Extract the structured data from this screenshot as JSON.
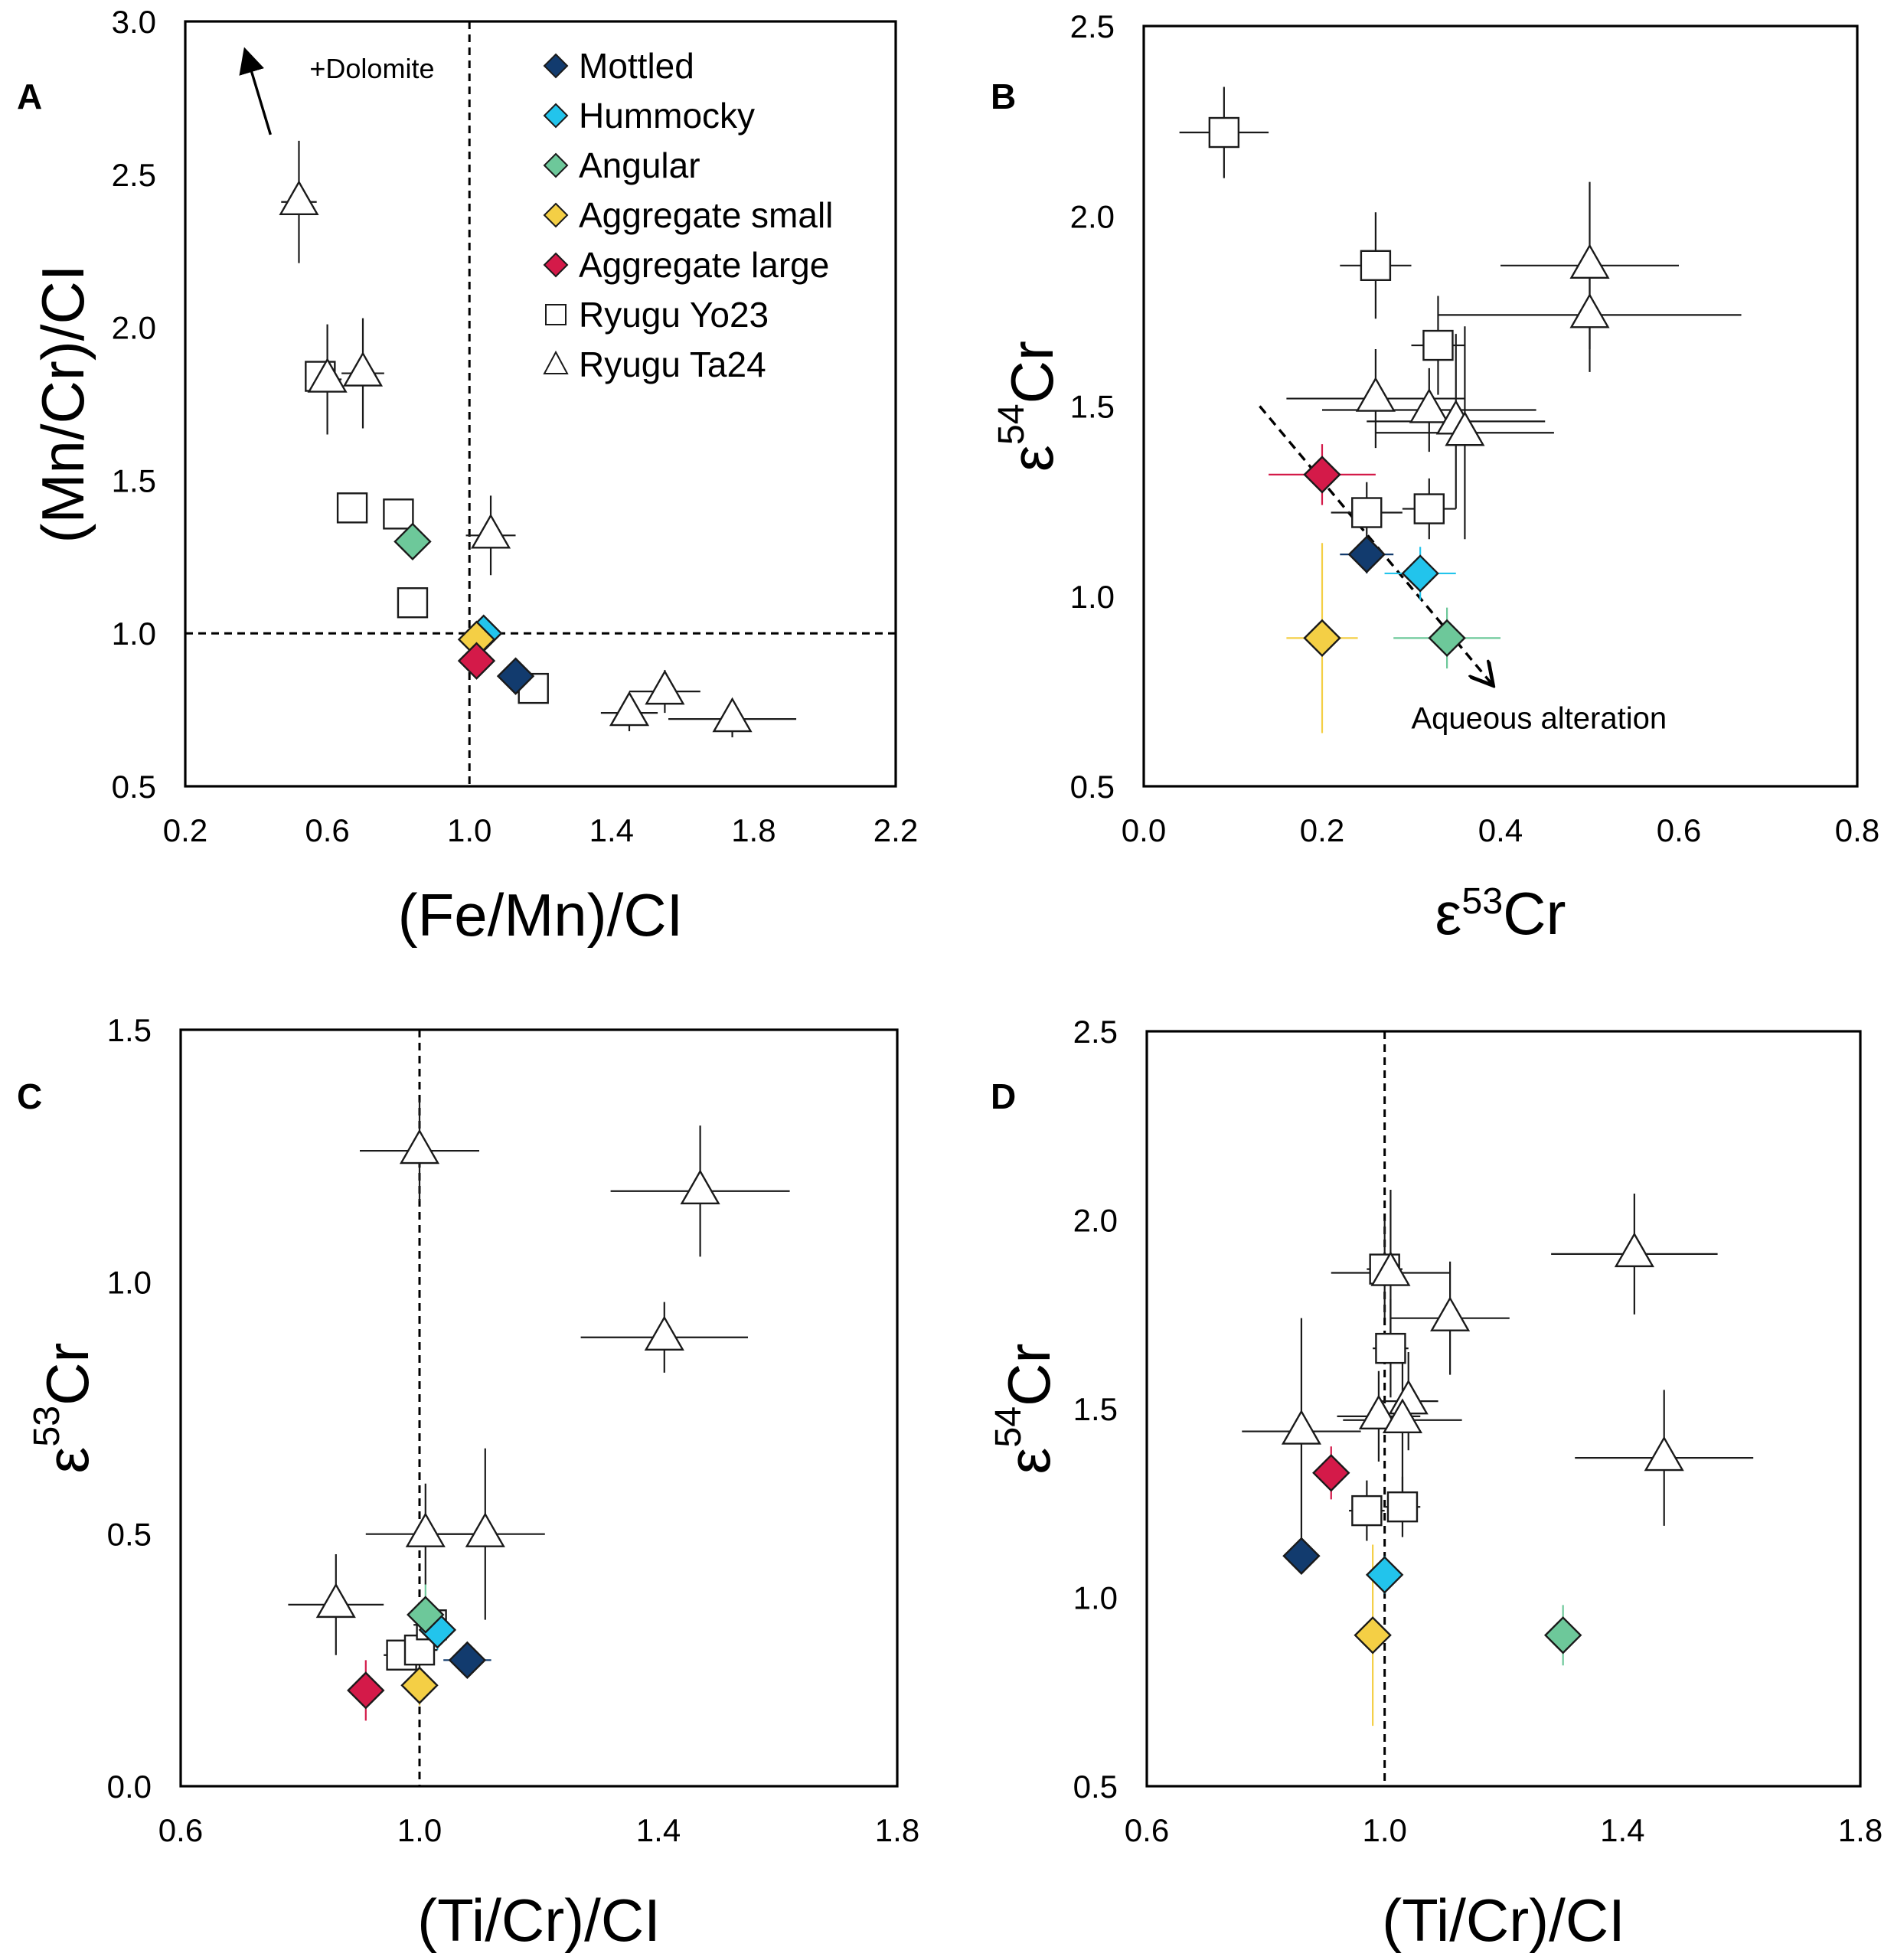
{
  "chart_data": [
    {
      "panel": "A",
      "type": "scatter",
      "xlabel": "(Fe/Mn)/CI",
      "ylabel": "(Mn/Cr)/CI",
      "xlim": [
        0.2,
        2.2
      ],
      "ylim": [
        0.5,
        3.0
      ],
      "xticks": [
        0.2,
        0.6,
        1.0,
        1.4,
        1.8,
        2.2
      ],
      "yticks": [
        0.5,
        1.0,
        1.5,
        2.0,
        2.5,
        3.0
      ],
      "grid": false,
      "reference_lines": [
        {
          "axis": "x",
          "value": 1.0
        },
        {
          "axis": "y",
          "value": 1.0
        }
      ],
      "annotations": [
        {
          "text": "+Dolomite",
          "x": 0.55,
          "y": 2.85,
          "arrow_from": [
            0.44,
            2.63
          ],
          "arrow_to": [
            0.37,
            2.9
          ]
        }
      ],
      "legend": {
        "placement": "top-right",
        "entries": [
          {
            "label": "Mottled",
            "marker": "diamond",
            "color": "#123b6e"
          },
          {
            "label": "Hummocky",
            "marker": "diamond",
            "color": "#22c4ec"
          },
          {
            "label": "Angular",
            "marker": "diamond",
            "color": "#6dc89a"
          },
          {
            "label": "Aggregate small",
            "marker": "diamond",
            "color": "#f4cf45"
          },
          {
            "label": "Aggregate large",
            "marker": "diamond",
            "color": "#d41a49"
          },
          {
            "label": "Ryugu Yo23",
            "marker": "square",
            "color": "#ffffff"
          },
          {
            "label": "Ryugu Ta24",
            "marker": "triangle",
            "color": "#ffffff"
          }
        ]
      },
      "series": [
        {
          "name": "Mottled",
          "marker": "diamond",
          "color": "#123b6e",
          "points": [
            {
              "x": 1.13,
              "y": 0.86
            }
          ]
        },
        {
          "name": "Hummocky",
          "marker": "diamond",
          "color": "#22c4ec",
          "points": [
            {
              "x": 1.04,
              "y": 1.0
            }
          ]
        },
        {
          "name": "Angular",
          "marker": "diamond",
          "color": "#6dc89a",
          "points": [
            {
              "x": 0.84,
              "y": 1.3
            }
          ]
        },
        {
          "name": "Aggregate small",
          "marker": "diamond",
          "color": "#f4cf45",
          "points": [
            {
              "x": 1.02,
              "y": 0.98
            }
          ]
        },
        {
          "name": "Aggregate large",
          "marker": "diamond",
          "color": "#d41a49",
          "points": [
            {
              "x": 1.02,
              "y": 0.91
            }
          ]
        },
        {
          "name": "Ryugu Yo23",
          "marker": "square",
          "color": "#ffffff",
          "points": [
            {
              "x": 0.58,
              "y": 1.84
            },
            {
              "x": 0.67,
              "y": 1.41
            },
            {
              "x": 0.8,
              "y": 1.39
            },
            {
              "x": 0.84,
              "y": 1.1
            },
            {
              "x": 1.18,
              "y": 0.82
            }
          ]
        },
        {
          "name": "Ryugu Ta24",
          "marker": "triangle",
          "color": "#ffffff",
          "points": [
            {
              "x": 0.52,
              "y": 2.41,
              "xerr": 0.05,
              "yerr": 0.2
            },
            {
              "x": 0.6,
              "y": 1.83,
              "xerr": 0.04,
              "yerr": 0.18
            },
            {
              "x": 0.7,
              "y": 1.85,
              "xerr": 0.06,
              "yerr": 0.18
            },
            {
              "x": 1.06,
              "y": 1.32,
              "xerr": 0.07,
              "yerr": 0.13
            },
            {
              "x": 1.45,
              "y": 0.74,
              "xerr": 0.08,
              "yerr": 0.06
            },
            {
              "x": 1.55,
              "y": 0.81,
              "xerr": 0.1,
              "yerr": 0.07
            },
            {
              "x": 1.74,
              "y": 0.72,
              "xerr": 0.18,
              "yerr": 0.06
            }
          ]
        }
      ]
    },
    {
      "panel": "B",
      "type": "scatter",
      "xlabel": "ε53Cr",
      "ylabel": "ε54Cr",
      "xlim": [
        0.0,
        0.8
      ],
      "ylim": [
        0.5,
        2.5
      ],
      "xticks": [
        0.0,
        0.2,
        0.4,
        0.6,
        0.8
      ],
      "yticks": [
        0.5,
        1.0,
        1.5,
        2.0,
        2.5
      ],
      "grid": false,
      "annotations": [
        {
          "text": "Aqueous alteration",
          "x": 0.3,
          "y": 0.68,
          "arrow_from": [
            0.13,
            1.5
          ],
          "arrow_to": [
            0.39,
            0.77
          ]
        }
      ],
      "series": [
        {
          "name": "Mottled",
          "marker": "diamond",
          "color": "#123b6e",
          "points": [
            {
              "x": 0.25,
              "y": 1.11,
              "xerr": 0.03,
              "yerr": 0.05
            }
          ]
        },
        {
          "name": "Hummocky",
          "marker": "diamond",
          "color": "#22c4ec",
          "points": [
            {
              "x": 0.31,
              "y": 1.06,
              "xerr": 0.04,
              "yerr": 0.07
            }
          ]
        },
        {
          "name": "Angular",
          "marker": "diamond",
          "color": "#6dc89a",
          "points": [
            {
              "x": 0.34,
              "y": 0.89,
              "xerr": 0.06,
              "yerr": 0.08
            }
          ]
        },
        {
          "name": "Aggregate small",
          "marker": "diamond",
          "color": "#f4cf45",
          "points": [
            {
              "x": 0.2,
              "y": 0.89,
              "xerr": 0.04,
              "yerr": 0.25
            }
          ]
        },
        {
          "name": "Aggregate large",
          "marker": "diamond",
          "color": "#d41a49",
          "points": [
            {
              "x": 0.2,
              "y": 1.32,
              "xerr": 0.06,
              "yerr": 0.08
            }
          ]
        },
        {
          "name": "Ryugu Yo23",
          "marker": "square",
          "color": "#ffffff",
          "points": [
            {
              "x": 0.09,
              "y": 2.22,
              "xerr": 0.05,
              "yerr": 0.12
            },
            {
              "x": 0.26,
              "y": 1.87,
              "xerr": 0.04,
              "yerr": 0.14
            },
            {
              "x": 0.33,
              "y": 1.66,
              "xerr": 0.03,
              "yerr": 0.13
            },
            {
              "x": 0.25,
              "y": 1.22,
              "xerr": 0.04,
              "yerr": 0.08
            },
            {
              "x": 0.32,
              "y": 1.23,
              "xerr": 0.03,
              "yerr": 0.08
            }
          ]
        },
        {
          "name": "Ryugu Ta24",
          "marker": "triangle",
          "color": "#ffffff",
          "points": [
            {
              "x": 0.5,
              "y": 1.87,
              "xerr": 0.1,
              "yerr": 0.22
            },
            {
              "x": 0.5,
              "y": 1.74,
              "xerr": 0.17,
              "yerr": 0.15
            },
            {
              "x": 0.26,
              "y": 1.52,
              "xerr": 0.1,
              "yerr": 0.13
            },
            {
              "x": 0.32,
              "y": 1.49,
              "xerr": 0.12,
              "yerr": 0.11
            },
            {
              "x": 0.35,
              "y": 1.46,
              "xerr": 0.1,
              "yerr": 0.23
            },
            {
              "x": 0.36,
              "y": 1.43,
              "xerr": 0.1,
              "yerr": 0.28
            }
          ]
        }
      ]
    },
    {
      "panel": "C",
      "type": "scatter",
      "xlabel": "(Ti/Cr)/CI",
      "ylabel": "ε53Cr",
      "xlim": [
        0.6,
        1.8
      ],
      "ylim": [
        0.0,
        1.5
      ],
      "xticks": [
        0.6,
        1.0,
        1.4,
        1.8
      ],
      "yticks": [
        0.0,
        0.5,
        1.0,
        1.5
      ],
      "grid": false,
      "reference_lines": [
        {
          "axis": "x",
          "value": 1.0
        }
      ],
      "series": [
        {
          "name": "Mottled",
          "marker": "diamond",
          "color": "#123b6e",
          "points": [
            {
              "x": 1.08,
              "y": 0.25,
              "xerr": 0.04,
              "yerr": 0.02
            }
          ]
        },
        {
          "name": "Hummocky",
          "marker": "diamond",
          "color": "#22c4ec",
          "points": [
            {
              "x": 1.03,
              "y": 0.31,
              "xerr": 0.03,
              "yerr": 0.04
            }
          ]
        },
        {
          "name": "Angular",
          "marker": "diamond",
          "color": "#6dc89a",
          "points": [
            {
              "x": 1.01,
              "y": 0.34,
              "xerr": 0.03,
              "yerr": 0.06
            }
          ]
        },
        {
          "name": "Aggregate small",
          "marker": "diamond",
          "color": "#f4cf45",
          "points": [
            {
              "x": 1.0,
              "y": 0.2,
              "xerr": 0.03,
              "yerr": 0.04
            }
          ]
        },
        {
          "name": "Aggregate large",
          "marker": "diamond",
          "color": "#d41a49",
          "points": [
            {
              "x": 0.91,
              "y": 0.19,
              "xerr": 0.02,
              "yerr": 0.06
            }
          ]
        },
        {
          "name": "Ryugu Yo23",
          "marker": "square",
          "color": "#ffffff",
          "points": [
            {
              "x": 0.97,
              "y": 0.26,
              "xerr": 0.03,
              "yerr": 0.02
            },
            {
              "x": 1.0,
              "y": 0.27,
              "xerr": 0.03,
              "yerr": 0.04
            },
            {
              "x": 1.02,
              "y": 0.32,
              "xerr": 0.03,
              "yerr": 0.03
            }
          ]
        },
        {
          "name": "Ryugu Ta24",
          "marker": "triangle",
          "color": "#ffffff",
          "points": [
            {
              "x": 1.0,
              "y": 1.26,
              "xerr": 0.1,
              "yerr": 0.1
            },
            {
              "x": 1.47,
              "y": 1.18,
              "xerr": 0.15,
              "yerr": 0.13
            },
            {
              "x": 1.41,
              "y": 0.89,
              "xerr": 0.14,
              "yerr": 0.07
            },
            {
              "x": 0.86,
              "y": 0.36,
              "xerr": 0.08,
              "yerr": 0.1
            },
            {
              "x": 1.01,
              "y": 0.5,
              "xerr": 0.1,
              "yerr": 0.1
            },
            {
              "x": 1.11,
              "y": 0.5,
              "xerr": 0.1,
              "yerr": 0.17
            }
          ]
        }
      ]
    },
    {
      "panel": "D",
      "type": "scatter",
      "xlabel": "(Ti/Cr)/CI",
      "ylabel": "ε54Cr",
      "xlim": [
        0.6,
        1.8
      ],
      "ylim": [
        0.5,
        2.5
      ],
      "xticks": [
        0.6,
        1.0,
        1.4,
        1.8
      ],
      "yticks": [
        0.5,
        1.0,
        1.5,
        2.0,
        2.5
      ],
      "grid": false,
      "reference_lines": [
        {
          "axis": "x",
          "value": 1.0
        }
      ],
      "series": [
        {
          "name": "Mottled",
          "marker": "diamond",
          "color": "#123b6e",
          "points": [
            {
              "x": 0.86,
              "y": 1.11
            }
          ]
        },
        {
          "name": "Hummocky",
          "marker": "diamond",
          "color": "#22c4ec",
          "points": [
            {
              "x": 1.0,
              "y": 1.06,
              "xerr": 0.03,
              "yerr": 0.05
            }
          ]
        },
        {
          "name": "Angular",
          "marker": "diamond",
          "color": "#6dc89a",
          "points": [
            {
              "x": 1.3,
              "y": 0.9,
              "xerr": 0.02,
              "yerr": 0.08
            }
          ]
        },
        {
          "name": "Aggregate small",
          "marker": "diamond",
          "color": "#f4cf45",
          "points": [
            {
              "x": 0.98,
              "y": 0.9,
              "xerr": 0.02,
              "yerr": 0.24
            }
          ]
        },
        {
          "name": "Aggregate large",
          "marker": "diamond",
          "color": "#d41a49",
          "points": [
            {
              "x": 0.91,
              "y": 1.33,
              "xerr": 0.02,
              "yerr": 0.07
            }
          ]
        },
        {
          "name": "Ryugu Yo23",
          "marker": "square",
          "color": "#ffffff",
          "points": [
            {
              "x": 1.0,
              "y": 1.87,
              "xerr": 0.03,
              "yerr": 0.13
            },
            {
              "x": 1.01,
              "y": 1.66,
              "xerr": 0.03,
              "yerr": 0.13
            },
            {
              "x": 0.97,
              "y": 1.23,
              "xerr": 0.03,
              "yerr": 0.08
            },
            {
              "x": 1.03,
              "y": 1.24,
              "xerr": 0.03,
              "yerr": 0.08
            }
          ]
        },
        {
          "name": "Ryugu Ta24",
          "marker": "triangle",
          "color": "#ffffff",
          "points": [
            {
              "x": 1.01,
              "y": 1.86,
              "xerr": 0.1,
              "yerr": 0.22
            },
            {
              "x": 1.42,
              "y": 1.91,
              "xerr": 0.14,
              "yerr": 0.16
            },
            {
              "x": 1.11,
              "y": 1.74,
              "xerr": 0.1,
              "yerr": 0.15
            },
            {
              "x": 0.86,
              "y": 1.44,
              "xerr": 0.1,
              "yerr": 0.3
            },
            {
              "x": 0.99,
              "y": 1.48,
              "xerr": 0.07,
              "yerr": 0.12
            },
            {
              "x": 1.04,
              "y": 1.52,
              "xerr": 0.05,
              "yerr": 0.13
            },
            {
              "x": 1.03,
              "y": 1.47,
              "xerr": 0.1,
              "yerr": 0.23
            },
            {
              "x": 1.47,
              "y": 1.37,
              "xerr": 0.15,
              "yerr": 0.18
            }
          ]
        }
      ]
    }
  ]
}
